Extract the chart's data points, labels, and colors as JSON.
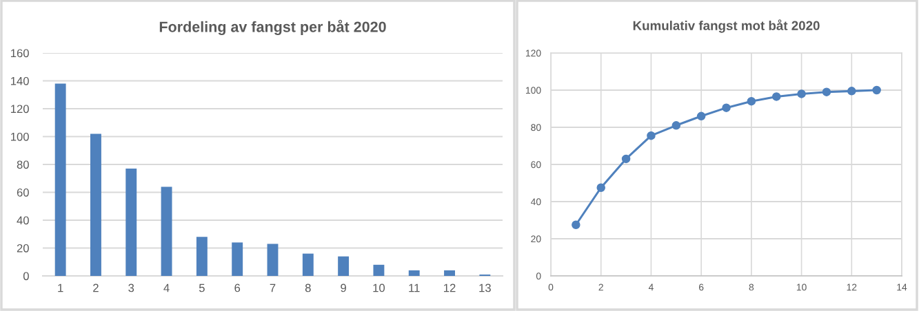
{
  "chart_data": [
    {
      "type": "bar",
      "title": "Fordeling av fangst per båt 2020",
      "categories": [
        "1",
        "2",
        "3",
        "4",
        "5",
        "6",
        "7",
        "8",
        "9",
        "10",
        "11",
        "12",
        "13"
      ],
      "values": [
        138,
        102,
        77,
        64,
        28,
        24,
        23,
        16,
        14,
        8,
        4,
        4,
        1
      ],
      "color": "#4f81bd",
      "ylim": [
        0,
        160
      ],
      "yticks": [
        0,
        20,
        40,
        60,
        80,
        100,
        120,
        140,
        160
      ],
      "grid": "y"
    },
    {
      "type": "line",
      "title": "Kumulativ fangst mot båt 2020",
      "x": [
        1,
        2,
        3,
        4,
        5,
        6,
        7,
        8,
        9,
        10,
        11,
        12,
        13
      ],
      "values": [
        27.5,
        47.5,
        63,
        75.5,
        81,
        86,
        90.5,
        94,
        96.5,
        98,
        99,
        99.5,
        100
      ],
      "color": "#4f81bd",
      "marker": "circle",
      "line_style": "solid",
      "xlim": [
        0,
        14
      ],
      "xticks": [
        0,
        2,
        4,
        6,
        8,
        10,
        12,
        14
      ],
      "ylim": [
        0,
        120
      ],
      "yticks": [
        0,
        20,
        40,
        60,
        80,
        100,
        120
      ],
      "grid": true
    }
  ]
}
